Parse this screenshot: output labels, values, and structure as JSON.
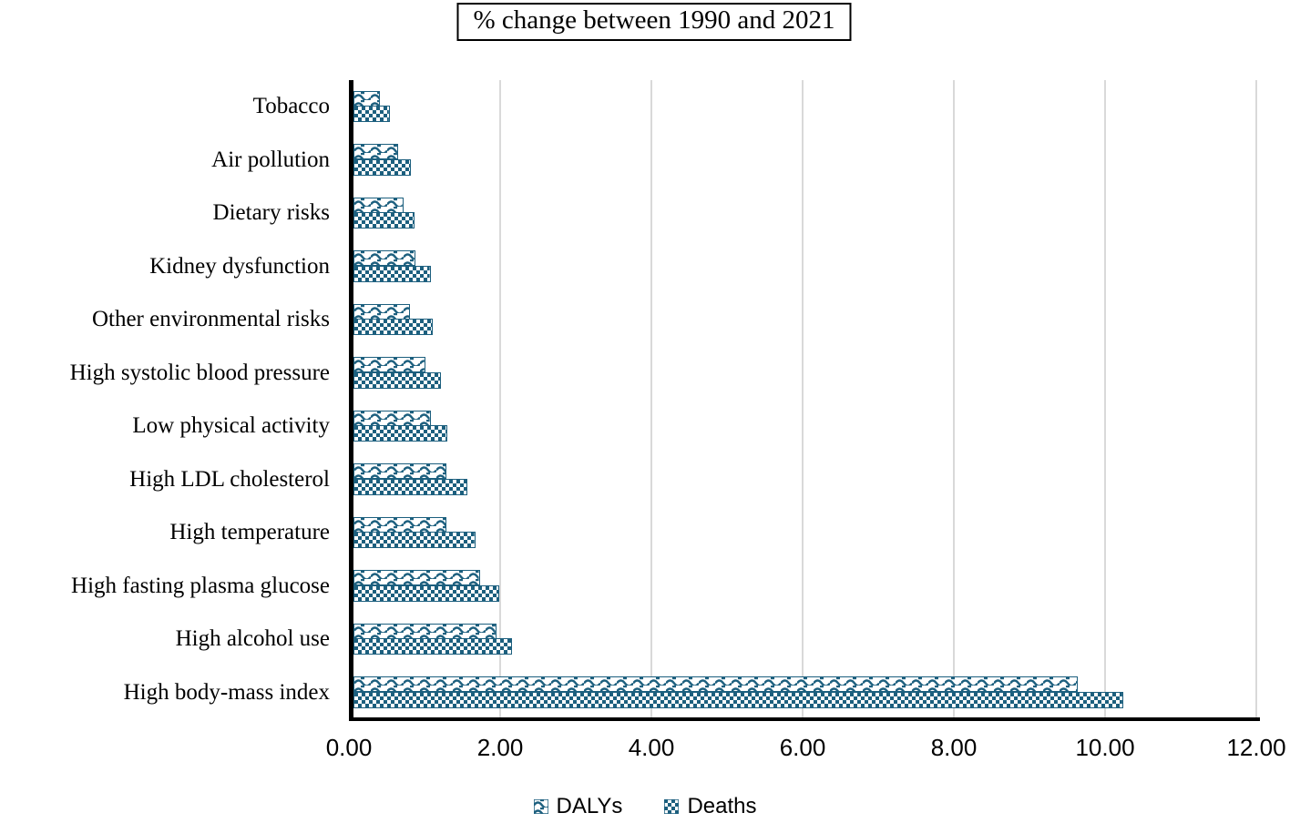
{
  "chart_data": {
    "type": "bar",
    "orientation": "horizontal",
    "title": "% change between 1990 and 2021",
    "categories": [
      "Tobacco",
      "Air pollution",
      "Dietary risks",
      "Kidney dysfunction",
      "Other environmental risks",
      "High systolic blood pressure",
      "Low physical activity",
      "High LDL cholesterol",
      "High temperature",
      "High fasting plasma glucose",
      "High alcohol use",
      "High body-mass index"
    ],
    "series": [
      {
        "name": "DALYs",
        "pattern": "wave",
        "values": [
          0.41,
          0.65,
          0.72,
          0.88,
          0.81,
          1.01,
          1.08,
          1.29,
          1.29,
          1.73,
          1.95,
          9.64
        ]
      },
      {
        "name": "Deaths",
        "pattern": "checker",
        "values": [
          0.54,
          0.82,
          0.87,
          1.08,
          1.11,
          1.22,
          1.3,
          1.57,
          1.67,
          1.99,
          2.16,
          10.24
        ]
      }
    ],
    "xlim": [
      0,
      12
    ],
    "x_ticks": [
      "0.00",
      "2.00",
      "4.00",
      "6.00",
      "8.00",
      "10.00",
      "12.00"
    ],
    "grid": "vertical-only",
    "legend_position": "bottom",
    "colors": {
      "bar_pattern": "#1C5F7E",
      "gridline": "#D9D9D9",
      "axis": "#000000",
      "text": "#000000"
    }
  }
}
